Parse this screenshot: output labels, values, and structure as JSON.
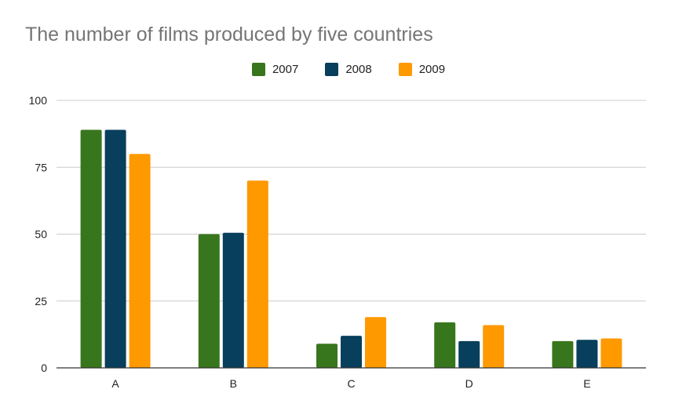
{
  "chart_data": {
    "type": "bar",
    "title": "The number of films produced by five countries",
    "categories": [
      "A",
      "B",
      "C",
      "D",
      "E"
    ],
    "series": [
      {
        "name": "2007",
        "color": "#38761d",
        "values": [
          89,
          50,
          9,
          17,
          10
        ]
      },
      {
        "name": "2008",
        "color": "#073f5c",
        "values": [
          89,
          50.5,
          12,
          10,
          10.5
        ]
      },
      {
        "name": "2009",
        "color": "#ff9900",
        "values": [
          80,
          70,
          19,
          16,
          11
        ]
      }
    ],
    "ylim": [
      0,
      100
    ],
    "yticks": [
      0,
      25,
      50,
      75,
      100
    ],
    "grid": true,
    "legend_position": "top-center",
    "xlabel": "",
    "ylabel": ""
  }
}
